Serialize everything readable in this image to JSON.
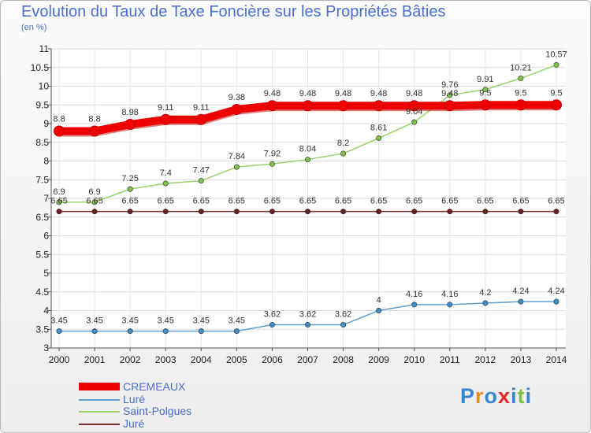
{
  "title": "Evolution du Taux de Taxe Foncière sur les Propriétés Bâties",
  "subtitle": "(en %)",
  "brand": "Proxiti",
  "chart_data": {
    "type": "line",
    "x": [
      "2000",
      "2001",
      "2002",
      "2003",
      "2004",
      "2005",
      "2006",
      "2007",
      "2008",
      "2009",
      "2010",
      "2011",
      "2012",
      "2013",
      "2014"
    ],
    "ylim": [
      3,
      11
    ],
    "yticks": [
      "3",
      "3.5",
      "4",
      "4.5",
      "5",
      "5.5",
      "6",
      "6.5",
      "7",
      "7.5",
      "8",
      "8.5",
      "9",
      "9.5",
      "10",
      "10.5",
      "11"
    ],
    "grid": true,
    "legend_position": "bottom-left",
    "series": [
      {
        "name": "CREMEAUX",
        "color": "#ee0000",
        "point_color": "#ee0000",
        "width": 10,
        "point_radius": 6.5,
        "values": [
          8.8,
          8.8,
          8.98,
          9.11,
          9.11,
          9.38,
          9.48,
          9.48,
          9.48,
          9.48,
          9.48,
          9.48,
          9.5,
          9.5,
          9.5
        ],
        "labels": [
          "8.8",
          "8.8",
          "8.98",
          "9.11",
          "9.11",
          "9.38",
          "9.48",
          "9.48",
          "9.48",
          "9.48",
          "9.48",
          "9.48",
          "9.5",
          "9.5",
          "9.5"
        ]
      },
      {
        "name": "Luré",
        "color": "#5f9fd0",
        "point_color": "#3d8fc9",
        "width": 1.5,
        "point_radius": 3.2,
        "values": [
          3.45,
          3.45,
          3.45,
          3.45,
          3.45,
          3.45,
          3.62,
          3.62,
          3.62,
          4,
          4.16,
          4.16,
          4.2,
          4.24,
          4.24
        ],
        "labels": [
          "3.45",
          "3.45",
          "3.45",
          "3.45",
          "3.45",
          "3.45",
          "3.62",
          "3.62",
          "3.62",
          "4",
          "4.16",
          "4.16",
          "4.2",
          "4.24",
          "4.24"
        ]
      },
      {
        "name": "Saint-Polgues",
        "color": "#9ad36a",
        "point_color": "#7dc24a",
        "width": 1.5,
        "point_radius": 3.2,
        "values": [
          6.9,
          6.9,
          7.25,
          7.4,
          7.47,
          7.84,
          7.92,
          8.04,
          8.2,
          8.61,
          9.04,
          9.76,
          9.91,
          10.21,
          10.57
        ],
        "labels": [
          "6.9",
          "6.9",
          "7.25",
          "7.4",
          "7.47",
          "7.84",
          "7.92",
          "8.04",
          "8.2",
          "8.61",
          "9.04",
          "9.76",
          "9.91",
          "10.21",
          "10.57"
        ]
      },
      {
        "name": "Juré",
        "color": "#7a2f2f",
        "point_color": "#6a1e1e",
        "width": 1.5,
        "point_radius": 3.2,
        "values": [
          6.65,
          6.65,
          6.65,
          6.65,
          6.65,
          6.65,
          6.65,
          6.65,
          6.65,
          6.65,
          6.65,
          6.65,
          6.65,
          6.65,
          6.65
        ],
        "labels": [
          "6.65",
          "6.65",
          "6.65",
          "6.65",
          "6.65",
          "6.65",
          "6.65",
          "6.65",
          "6.65",
          "6.65",
          "6.65",
          "6.65",
          "6.65",
          "6.65",
          "6.65"
        ]
      }
    ]
  }
}
